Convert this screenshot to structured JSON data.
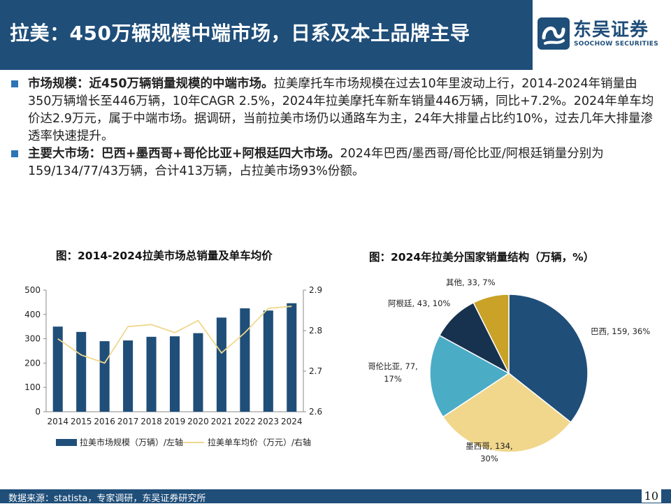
{
  "header": {
    "title": "拉美：450万辆规模中端市场，日系及本土品牌主导",
    "brand_cn": "东吴证券",
    "brand_en": "SOOCHOW SECURITIES",
    "brand_color": "#1f4e79"
  },
  "bullets": [
    {
      "lead": "市场规模：近450万辆销量规模的中端市场。",
      "text": "拉美摩托车市场规模在过去10年里波动上行，2014-2024年销量由350万辆增长至446万辆，10年CAGR 2.5%，2024年拉美摩托车新车销量446万辆，同比+7.2%。2024年单车均价达2.9万元，属于中端市场。据调研，当前拉美市场仍以通路车为主，24年大排量占比约10%，过去几年大排量渗透率快速提升。"
    },
    {
      "lead": "主要大市场：巴西+墨西哥+哥伦比亚+阿根廷四大市场。",
      "text": "2024年巴西/墨西哥/哥伦比亚/阿根廷销量分别为159/134/77/43万辆，合计413万辆，占拉美市场93%份额。"
    }
  ],
  "chart1_title": "图：2014-2024拉美市场总销量及单车均价",
  "chart2_title": "图：2024年拉美分国家销量结构（万辆，%）",
  "chart_data": [
    {
      "type": "bar",
      "categories": [
        "2014",
        "2015",
        "2016",
        "2017",
        "2018",
        "2019",
        "2020",
        "2021",
        "2022",
        "2023",
        "2024"
      ],
      "series": [
        {
          "name": "拉美市场规模（万辆）/左轴",
          "type": "bar",
          "axis": "left",
          "color": "#1f4e79",
          "values": [
            350,
            328,
            290,
            293,
            308,
            310,
            323,
            387,
            425,
            416,
            446
          ]
        },
        {
          "name": "拉美单车均价（万元）/右轴",
          "type": "line",
          "axis": "right",
          "color": "#f0d78c",
          "values": [
            2.78,
            2.74,
            2.72,
            2.81,
            2.815,
            2.795,
            2.825,
            2.745,
            2.795,
            2.855,
            2.86
          ]
        }
      ],
      "y_left": {
        "min": 0,
        "max": 500,
        "ticks": [
          "0",
          "100",
          "200",
          "300",
          "400",
          "500"
        ]
      },
      "y_right": {
        "min": 2.6,
        "max": 2.9,
        "ticks": [
          "2.6",
          "2.7",
          "2.8",
          "2.9"
        ]
      },
      "grid": false,
      "legend_position": "bottom"
    },
    {
      "type": "pie",
      "slices": [
        {
          "label": "巴西, 159, 36%",
          "name": "巴西",
          "value": 159,
          "pct": 36,
          "color": "#1f4e79"
        },
        {
          "label": "墨西哥, 134, 30%",
          "name": "墨西哥",
          "value": 134,
          "pct": 30,
          "color": "#f0d78c"
        },
        {
          "label": "哥伦比亚, 77, 17%",
          "name": "哥伦比亚",
          "value": 77,
          "pct": 17,
          "color": "#4bacc6"
        },
        {
          "label": "阿根廷, 43, 10%",
          "name": "阿根廷",
          "value": 43,
          "pct": 10,
          "color": "#17324f"
        },
        {
          "label": "其他, 33, 7%",
          "name": "其他",
          "value": 33,
          "pct": 7,
          "color": "#c9a227"
        }
      ]
    }
  ],
  "footer": {
    "source": "数据来源：statista，专家调研，东吴证券研究所",
    "page": "10"
  }
}
